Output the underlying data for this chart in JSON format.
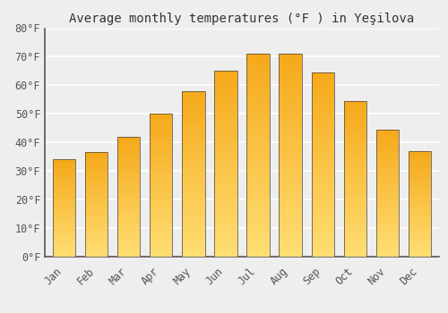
{
  "title": "Average monthly temperatures (°F ) in Yeşilova",
  "months": [
    "Jan",
    "Feb",
    "Mar",
    "Apr",
    "May",
    "Jun",
    "Jul",
    "Aug",
    "Sep",
    "Oct",
    "Nov",
    "Dec"
  ],
  "values": [
    34,
    36.5,
    42,
    50,
    58,
    65,
    71,
    71,
    64.5,
    54.5,
    44.5,
    37
  ],
  "bar_color_top": "#F5A800",
  "bar_color_bottom": "#FFD966",
  "bar_edge_color": "#444444",
  "ylim": [
    0,
    80
  ],
  "yticks": [
    0,
    10,
    20,
    30,
    40,
    50,
    60,
    70,
    80
  ],
  "ytick_labels": [
    "0°F",
    "10°F",
    "20°F",
    "30°F",
    "40°F",
    "50°F",
    "60°F",
    "70°F",
    "80°F"
  ],
  "background_color": "#eeeeee",
  "grid_color": "#ffffff",
  "title_fontsize": 10,
  "tick_fontsize": 8.5
}
